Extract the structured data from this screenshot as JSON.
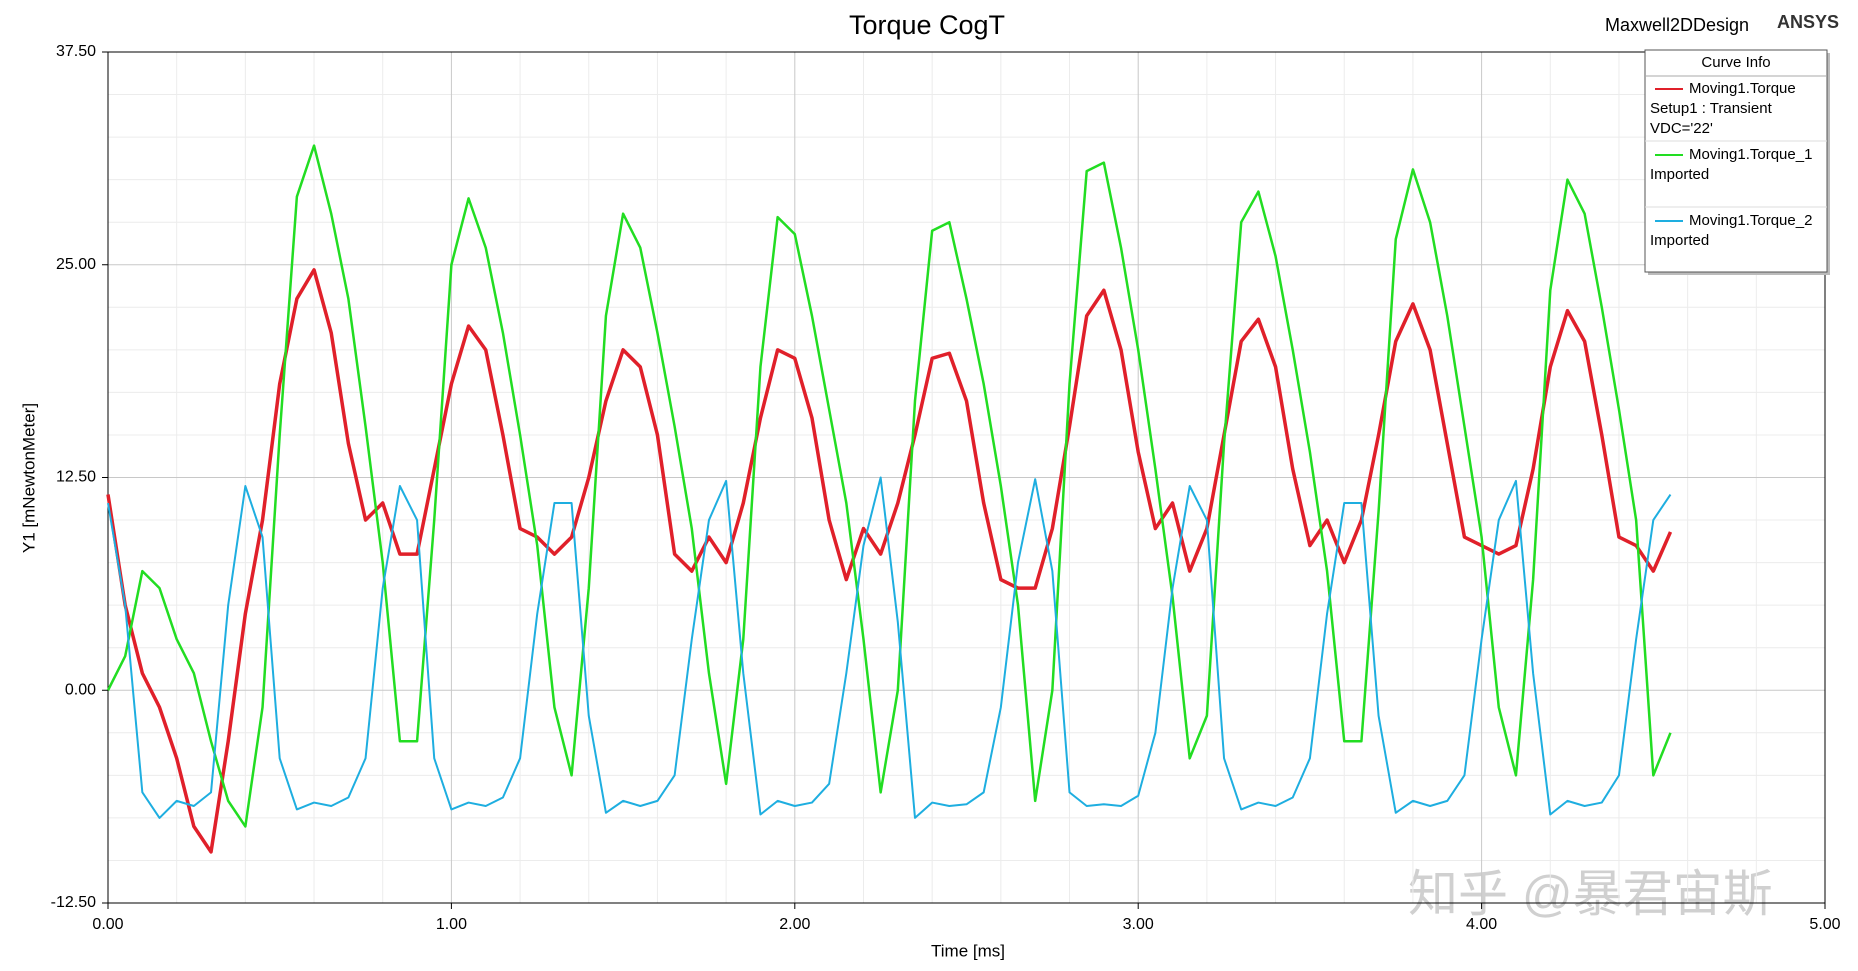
{
  "chart_data": {
    "type": "line",
    "title": "Torque CogT",
    "product": "Maxwell2DDesign",
    "brand": "ANSYS",
    "xlabel": "Time [ms]",
    "ylabel": "Y1 [mNewtonMeter]",
    "legend_title": "Curve Info",
    "legend": "top-right",
    "grid": true,
    "watermark": "知乎 @暴君宙斯",
    "xlim": [
      0,
      5
    ],
    "ylim": [
      -12.5,
      37.5
    ],
    "xticks": [
      {
        "value": 0,
        "label": "0.00"
      },
      {
        "value": 1,
        "label": "1.00"
      },
      {
        "value": 2,
        "label": "2.00"
      },
      {
        "value": 3,
        "label": "3.00"
      },
      {
        "value": 4,
        "label": "4.00"
      },
      {
        "value": 5,
        "label": "5.00"
      }
    ],
    "yticks": [
      {
        "value": -12.5,
        "label": "-12.50"
      },
      {
        "value": 0,
        "label": "0.00"
      },
      {
        "value": 12.5,
        "label": "12.50"
      },
      {
        "value": 25,
        "label": "25.00"
      },
      {
        "value": 37.5,
        "label": "37.50"
      }
    ],
    "xminorticks": [
      0.2,
      0.4,
      0.6,
      0.8,
      1.2,
      1.4,
      1.6,
      1.8,
      2.2,
      2.4,
      2.6,
      2.8,
      3.2,
      3.4,
      3.6,
      3.8,
      4.2,
      4.4,
      4.6,
      4.8
    ],
    "yminorticks": [
      -10,
      -7.5,
      -5,
      -2.5,
      2.5,
      5,
      7.5,
      10,
      15,
      17.5,
      20,
      22.5,
      27.5,
      30,
      32.5,
      35
    ],
    "x": [
      0,
      0.05,
      0.1,
      0.15,
      0.2,
      0.25,
      0.3,
      0.35,
      0.4,
      0.45,
      0.5,
      0.55,
      0.6,
      0.65,
      0.7,
      0.75,
      0.8,
      0.85,
      0.9,
      0.95,
      1.0,
      1.05,
      1.1,
      1.15,
      1.2,
      1.25,
      1.3,
      1.35,
      1.4,
      1.45,
      1.5,
      1.55,
      1.6,
      1.65,
      1.7,
      1.75,
      1.8,
      1.85,
      1.9,
      1.95,
      2.0,
      2.05,
      2.1,
      2.15,
      2.2,
      2.25,
      2.3,
      2.35,
      2.4,
      2.45,
      2.5,
      2.55,
      2.6,
      2.65,
      2.7,
      2.75,
      2.8,
      2.85,
      2.9,
      2.95,
      3.0,
      3.05,
      3.1,
      3.15,
      3.2,
      3.25,
      3.3,
      3.35,
      3.4,
      3.45,
      3.5,
      3.55,
      3.6,
      3.65,
      3.7,
      3.75,
      3.8,
      3.85,
      3.9,
      3.95,
      4.0,
      4.05,
      4.1,
      4.15,
      4.2,
      4.25,
      4.3,
      4.35,
      4.4,
      4.45,
      4.5,
      4.55
    ],
    "series": [
      {
        "name": "Moving1.Torque",
        "info": [
          "Setup1 : Transient",
          "VDC='22'"
        ],
        "color": "#e0202a",
        "width": 3.5,
        "values": [
          11.5,
          5,
          1,
          -1,
          -4,
          -8,
          -9.5,
          -3,
          4.5,
          10,
          18,
          23,
          24.7,
          21,
          14.5,
          10,
          11,
          8,
          8,
          13,
          18,
          21.4,
          20,
          15,
          9.5,
          9,
          8,
          9,
          12.5,
          17,
          20,
          19,
          15,
          8,
          7,
          9,
          7.5,
          11,
          16,
          20,
          19.5,
          16,
          10,
          6.5,
          9.5,
          8,
          11,
          15,
          19.5,
          19.8,
          17,
          11,
          6.5,
          6,
          6,
          9.5,
          15.5,
          22,
          23.5,
          20,
          14,
          9.5,
          11,
          7,
          9.5,
          15,
          20.5,
          21.8,
          19,
          13,
          8.5,
          10,
          7.5,
          10,
          15,
          20.5,
          22.7,
          20,
          14.5,
          9,
          8.5,
          8,
          8.5,
          13,
          19,
          22.3,
          20.5,
          15,
          9,
          8.5,
          7,
          9.3
        ]
      },
      {
        "name": "Moving1.Torque_1",
        "info": [
          "Imported"
        ],
        "color": "#22dd22",
        "width": 2.5,
        "values": [
          0,
          2,
          7,
          6,
          3,
          1,
          -3,
          -6.5,
          -8,
          -1,
          15,
          29,
          32,
          28,
          23,
          15.5,
          7.5,
          -3,
          -3,
          10,
          25,
          28.9,
          26,
          21,
          15,
          8.5,
          -1,
          -5,
          6,
          22,
          28,
          26,
          21,
          15.5,
          9.5,
          1,
          -5.5,
          3,
          19,
          27.8,
          26.8,
          22,
          16.5,
          11,
          3,
          -6,
          0,
          17,
          27,
          27.5,
          23,
          18,
          12,
          5,
          -6.5,
          0,
          18,
          30.5,
          31,
          26,
          20,
          13,
          5.5,
          -4,
          -1.5,
          14.5,
          27.5,
          29.3,
          25.5,
          20,
          14,
          7,
          -3,
          -3,
          10.5,
          26.5,
          30.6,
          27.5,
          22,
          15.5,
          9,
          -1,
          -5,
          6.5,
          23.5,
          30,
          28,
          22.5,
          16.5,
          10,
          -5,
          -2.5
        ]
      },
      {
        "name": "Moving1.Torque_2",
        "info": [
          "Imported"
        ],
        "color": "#1eaee0",
        "width": 2,
        "values": [
          11,
          5,
          -6,
          -7.5,
          -6.5,
          -6.8,
          -6,
          5,
          12,
          9,
          -4,
          -7,
          -6.6,
          -6.8,
          -6.3,
          -4,
          6,
          12,
          10,
          -4,
          -7,
          -6.6,
          -6.8,
          -6.3,
          -4,
          4.5,
          11,
          11,
          -1.5,
          -7.2,
          -6.5,
          -6.8,
          -6.5,
          -5,
          3,
          10,
          12.3,
          1,
          -7.3,
          -6.5,
          -6.8,
          -6.6,
          -5.5,
          1,
          8.5,
          12.5,
          4,
          -7.5,
          -6.6,
          -6.8,
          -6.7,
          -6,
          -1,
          7.5,
          12.4,
          7,
          -6,
          -6.8,
          -6.7,
          -6.8,
          -6.2,
          -2.5,
          6,
          12,
          10,
          -4,
          -7,
          -6.6,
          -6.8,
          -6.3,
          -4,
          4.5,
          11,
          11,
          -1.5,
          -7.2,
          -6.5,
          -6.8,
          -6.5,
          -5,
          3,
          10,
          12.3,
          1,
          -7.3,
          -6.5,
          -6.8,
          -6.6,
          -5,
          3,
          10,
          11.5
        ]
      }
    ]
  }
}
